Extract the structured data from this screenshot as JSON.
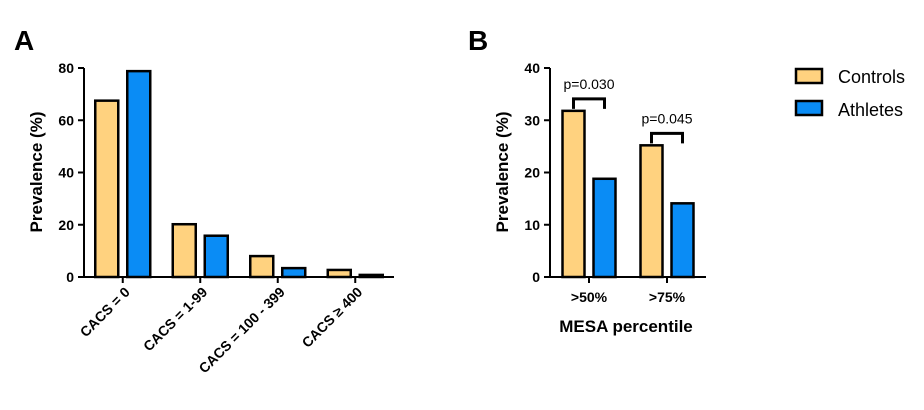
{
  "chart_data": [
    {
      "panel": "A",
      "type": "bar",
      "categories": [
        "CACS = 0",
        "CACS = 1-99",
        "CACS = 100 - 399",
        "CACS ≥ 400"
      ],
      "series": [
        {
          "name": "Controls",
          "values": [
            67.5,
            20.2,
            8.0,
            2.7
          ]
        },
        {
          "name": "Athletes",
          "values": [
            78.8,
            15.8,
            3.4,
            0.8
          ]
        }
      ],
      "xlabel": "",
      "ylabel": "Prevalence (%)",
      "ylim": [
        0,
        80
      ],
      "yticks": [
        "0",
        "20",
        "40",
        "60",
        "80"
      ],
      "grid": false
    },
    {
      "panel": "B",
      "type": "bar",
      "categories": [
        ">50%",
        ">75%"
      ],
      "series": [
        {
          "name": "Controls",
          "values": [
            31.8,
            25.2
          ]
        },
        {
          "name": "Athletes",
          "values": [
            18.8,
            14.1
          ]
        }
      ],
      "xlabel": "MESA percentile",
      "ylabel": "Prevalence (%)",
      "ylim": [
        0,
        40
      ],
      "yticks": [
        "0",
        "10",
        "20",
        "30",
        "40"
      ],
      "grid": false,
      "annotations": [
        {
          "category": ">50%",
          "text": "p=0.030"
        },
        {
          "category": ">75%",
          "text": "p=0.045"
        }
      ]
    }
  ],
  "legend": [
    {
      "name": "Controls",
      "color": "#FFD27F"
    },
    {
      "name": "Athletes",
      "color": "#0A8CF5"
    }
  ],
  "colors": {
    "controls": "#FFD27F",
    "athletes": "#0A8CF5",
    "outline": "#000000"
  }
}
